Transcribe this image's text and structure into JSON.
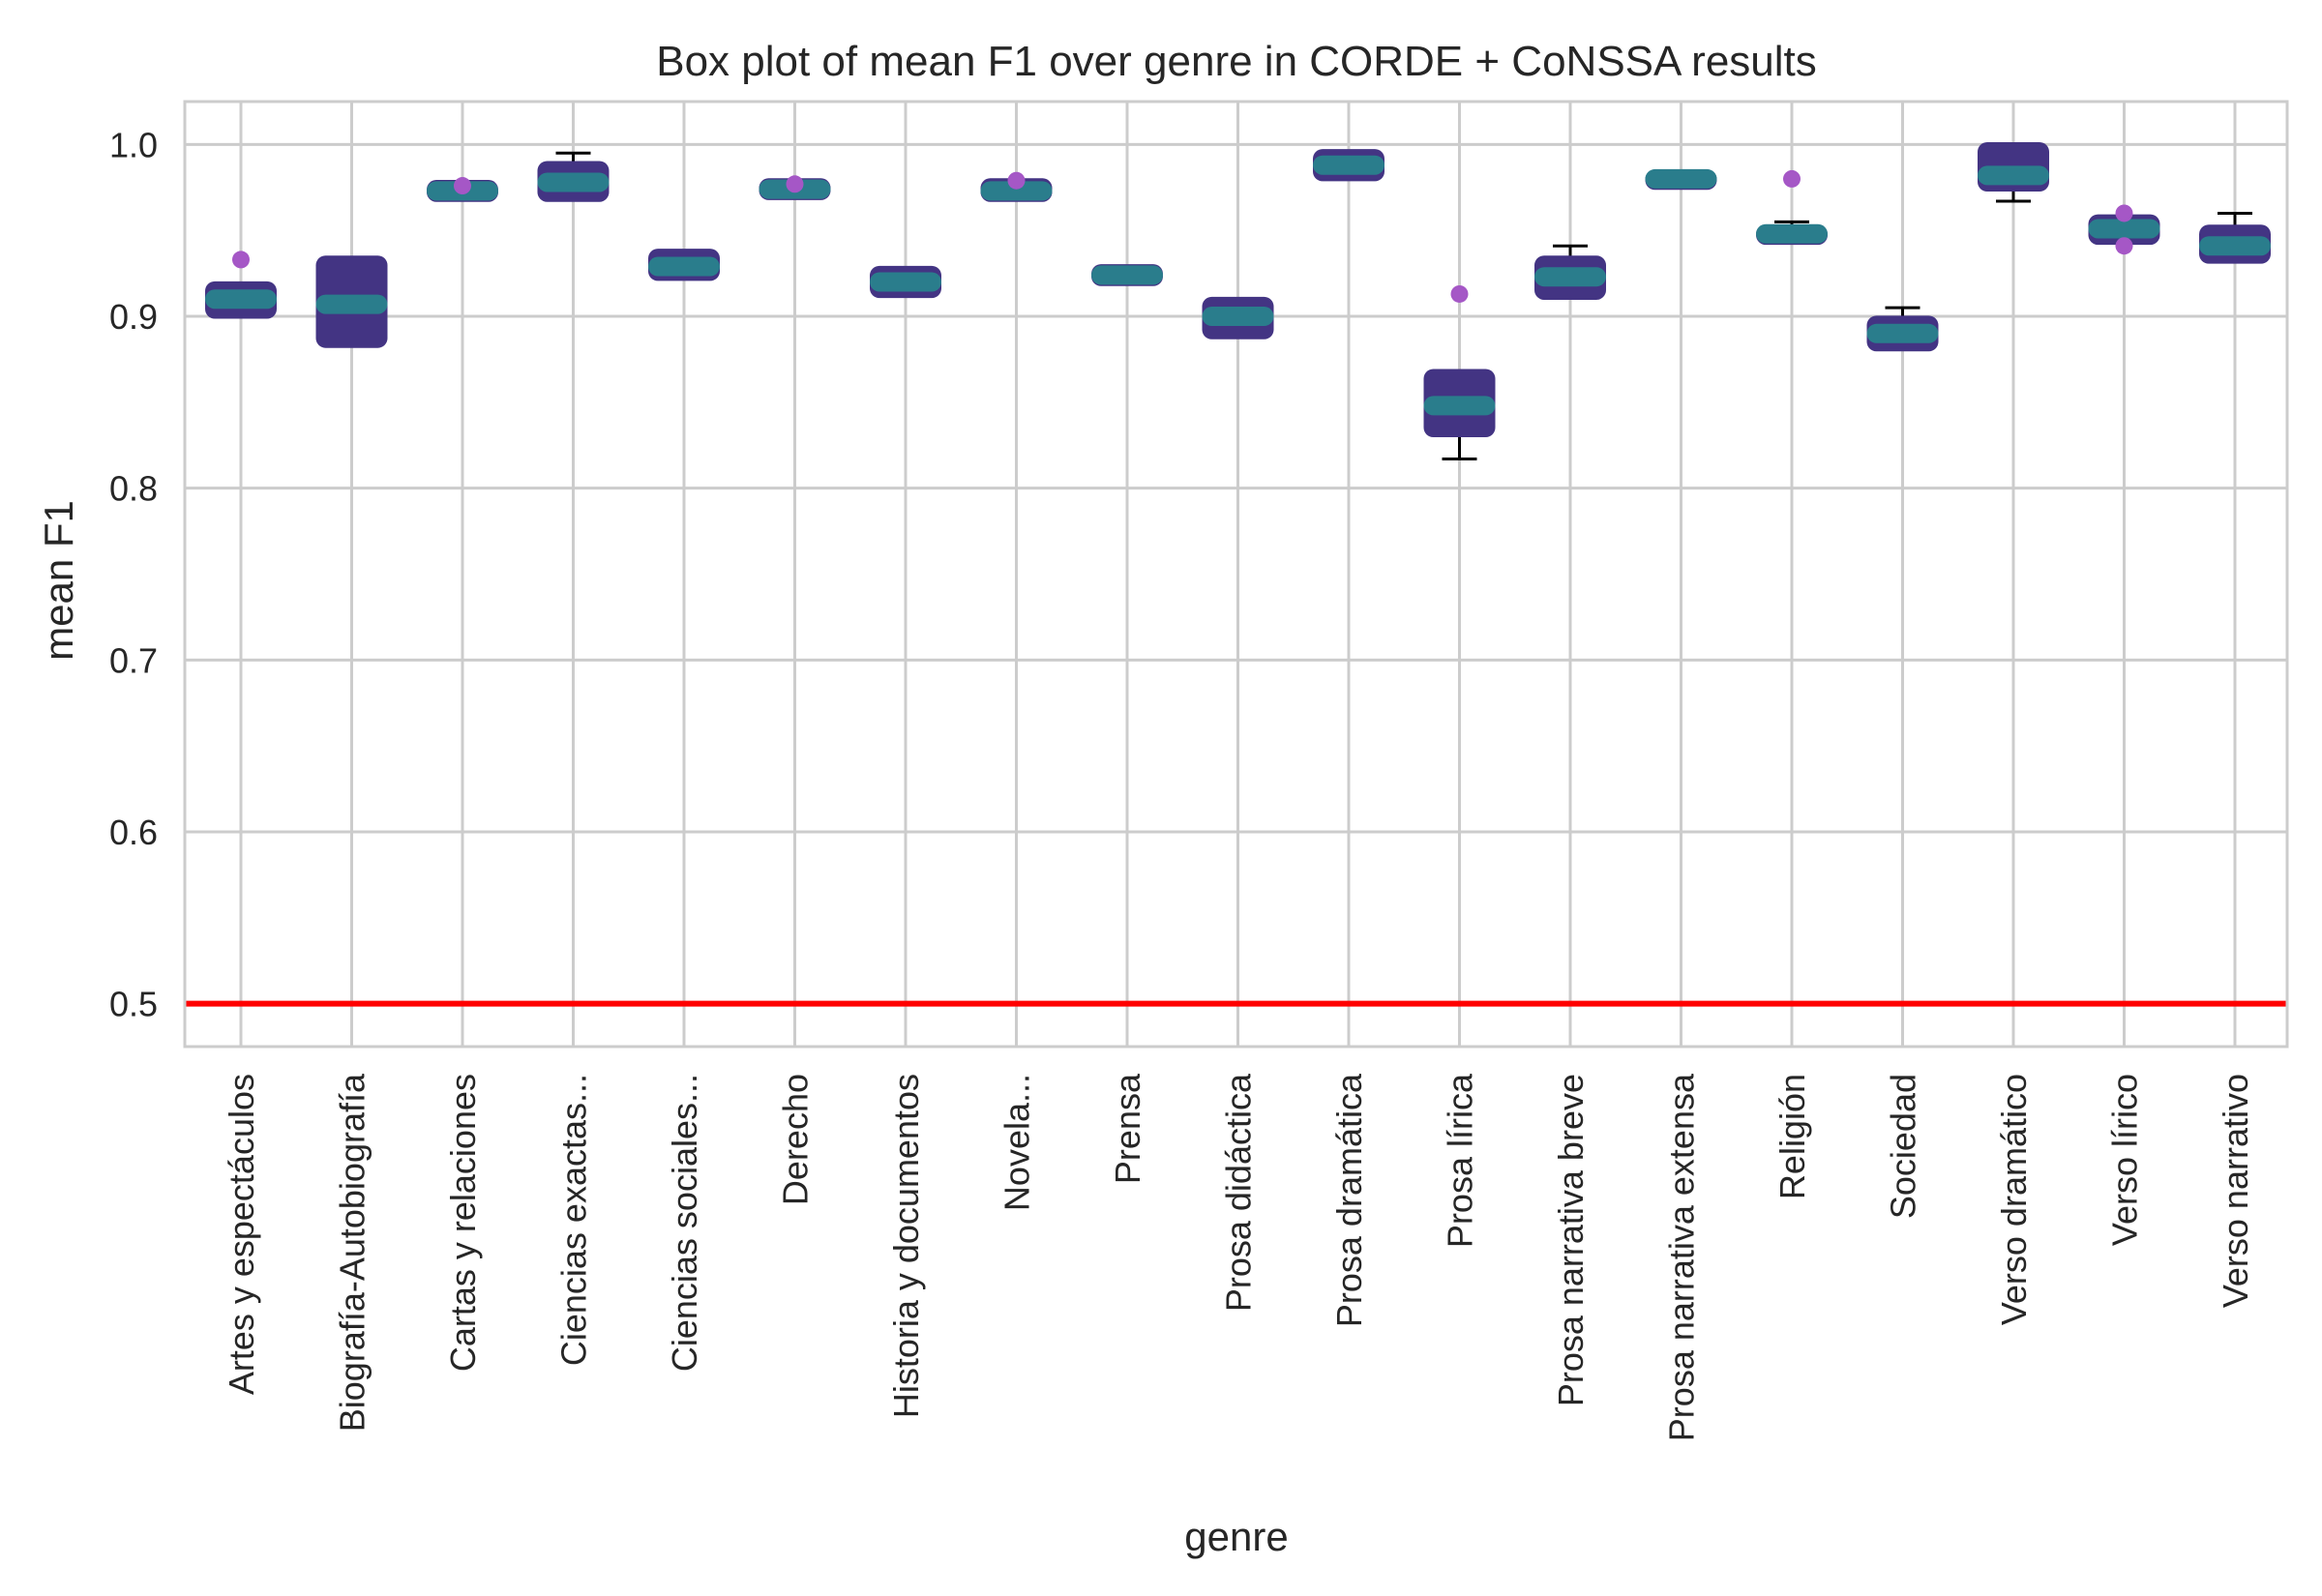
{
  "chart_data": {
    "type": "box",
    "title": "Box plot of mean F1 over genre in CORDE + CoNSSA results",
    "xlabel": "genre",
    "ylabel": "mean F1",
    "ylim": [
      0.475,
      1.025
    ],
    "yticks": [
      0.5,
      0.6,
      0.7,
      0.8,
      0.9,
      1.0
    ],
    "ytick_labels": [
      "0.5",
      "0.6",
      "0.7",
      "0.8",
      "0.9",
      "1.0"
    ],
    "grid": true,
    "reference_line": {
      "y": 0.5,
      "color": "#ff0000"
    },
    "colors": {
      "box": "#433483",
      "median": "#2a7d8c",
      "whisker": "#000000",
      "outlier": "#a557c6",
      "grid": "#cccccc"
    },
    "categories": [
      "Artes y espectáculos",
      "Biografía-Autobiografía",
      "Cartas y relaciones",
      "Ciencias exactas...",
      "Ciencias sociales...",
      "Derecho",
      "Historia y documentos",
      "Novela...",
      "Prensa",
      "Prosa didáctica",
      "Prosa dramática",
      "Prosa lírica",
      "Prosa narrativa breve",
      "Prosa narrativa extensa",
      "Religión",
      "Sociedad",
      "Verso dramático",
      "Verso lírico",
      "Verso narrativo"
    ],
    "boxes": [
      {
        "min": 0.9,
        "q1": 0.902,
        "median": 0.91,
        "q3": 0.917,
        "max": 0.917,
        "outliers": [
          0.933
        ]
      },
      {
        "min": 0.883,
        "q1": 0.885,
        "median": 0.907,
        "q3": 0.932,
        "max": 0.933,
        "outliers": []
      },
      {
        "min": 0.97,
        "q1": 0.97,
        "median": 0.973,
        "q3": 0.976,
        "max": 0.976,
        "outliers": [
          0.976
        ]
      },
      {
        "min": 0.969,
        "q1": 0.97,
        "median": 0.978,
        "q3": 0.987,
        "max": 0.995,
        "outliers": []
      },
      {
        "min": 0.924,
        "q1": 0.924,
        "median": 0.929,
        "q3": 0.936,
        "max": 0.938,
        "outliers": []
      },
      {
        "min": 0.971,
        "q1": 0.971,
        "median": 0.974,
        "q3": 0.977,
        "max": 0.977,
        "outliers": [
          0.977
        ]
      },
      {
        "min": 0.913,
        "q1": 0.914,
        "median": 0.92,
        "q3": 0.926,
        "max": 0.926,
        "outliers": []
      },
      {
        "min": 0.97,
        "q1": 0.97,
        "median": 0.973,
        "q3": 0.977,
        "max": 0.977,
        "outliers": [
          0.979
        ]
      },
      {
        "min": 0.921,
        "q1": 0.921,
        "median": 0.924,
        "q3": 0.927,
        "max": 0.927,
        "outliers": []
      },
      {
        "min": 0.888,
        "q1": 0.89,
        "median": 0.9,
        "q3": 0.908,
        "max": 0.91,
        "outliers": []
      },
      {
        "min": 0.981,
        "q1": 0.982,
        "median": 0.988,
        "q3": 0.994,
        "max": 0.995,
        "outliers": []
      },
      {
        "min": 0.817,
        "q1": 0.833,
        "median": 0.848,
        "q3": 0.866,
        "max": 0.866,
        "outliers": [
          0.913
        ]
      },
      {
        "min": 0.911,
        "q1": 0.913,
        "median": 0.923,
        "q3": 0.932,
        "max": 0.941,
        "outliers": []
      },
      {
        "min": 0.977,
        "q1": 0.977,
        "median": 0.98,
        "q3": 0.982,
        "max": 0.982,
        "outliers": []
      },
      {
        "min": 0.945,
        "q1": 0.945,
        "median": 0.948,
        "q3": 0.95,
        "max": 0.955,
        "outliers": [
          0.98
        ]
      },
      {
        "min": 0.883,
        "q1": 0.883,
        "median": 0.89,
        "q3": 0.897,
        "max": 0.905,
        "outliers": []
      },
      {
        "min": 0.967,
        "q1": 0.976,
        "median": 0.982,
        "q3": 0.998,
        "max": 1.0,
        "outliers": []
      },
      {
        "min": 0.945,
        "q1": 0.945,
        "median": 0.951,
        "q3": 0.956,
        "max": 0.957,
        "outliers": [
          0.96,
          0.941
        ]
      },
      {
        "min": 0.933,
        "q1": 0.934,
        "median": 0.941,
        "q3": 0.95,
        "max": 0.96,
        "outliers": []
      }
    ]
  }
}
